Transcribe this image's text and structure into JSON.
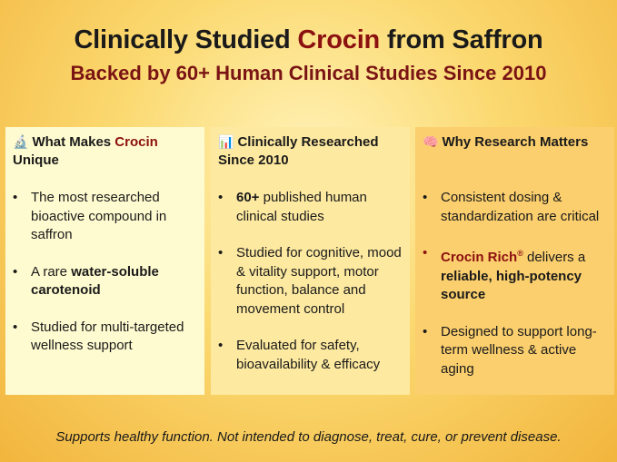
{
  "header": {
    "title_pre": "Clinically Studied ",
    "title_accent": "Crocin",
    "title_post": " from Saffron",
    "subtitle": "Backed by 60+ Human Clinical Studies Since 2010"
  },
  "cards": [
    {
      "icon": "microscope-icon",
      "icon_glyph": "🔬",
      "head_pre": "What Makes ",
      "head_accent": "Crocin",
      "head_post": " Unique",
      "items": [
        {
          "pre": "The most researched bioactive compound in saffron",
          "bold": "",
          "post": ""
        },
        {
          "pre": "A rare ",
          "bold": "water-soluble carotenoid",
          "post": ""
        },
        {
          "pre": "Studied for multi-targeted wellness support",
          "bold": "",
          "post": ""
        }
      ]
    },
    {
      "icon": "bar-chart-icon",
      "icon_glyph": "📊",
      "head": "Clinically Researched Since 2010",
      "items": [
        {
          "bold": "60+",
          "post": " published human clinical studies"
        },
        {
          "text": "Studied for cognitive, mood & vitality support, motor function, balance and movement control"
        },
        {
          "text": "Evaluated for safety, bioavailability & efficacy"
        }
      ]
    },
    {
      "icon": "brain-icon",
      "icon_glyph": "🧠",
      "head": "Why Research Matters",
      "items": [
        {
          "text": "Consistent dosing & standardization are critical"
        },
        {
          "red": "Crocin Rich",
          "reg": "®",
          "mid": " delivers a ",
          "bold": "reliable, high-potency source"
        },
        {
          "text": "Designed to support long-term wellness & active aging"
        }
      ]
    }
  ],
  "footer": "Supports healthy function. Not intended to diagnose, treat, cure, or prevent disease.",
  "colors": {
    "accent": "#8b1010",
    "subtitle": "#7a1414"
  }
}
